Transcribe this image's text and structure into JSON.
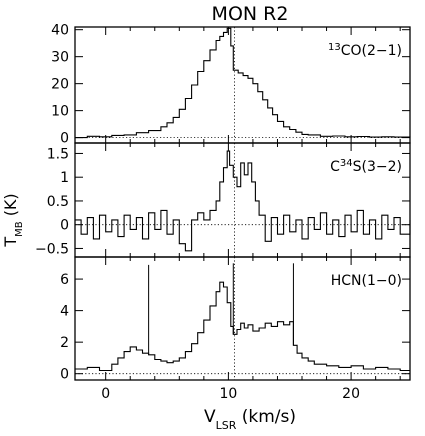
{
  "chart_data": {
    "type": "line",
    "title": "MON R2",
    "xlabel": {
      "main": "V",
      "sub": "LSR",
      "tail": " (km/s)"
    },
    "ylabel": {
      "main": "T",
      "sub": "MB",
      "tail": " (K)"
    },
    "xlim": [
      -2.5,
      24.8
    ],
    "x_ticks": [
      0,
      10,
      20
    ],
    "reference_velocity": 10.5,
    "panels": [
      {
        "name": "13CO(2-1)",
        "label": {
          "sup": "13",
          "main": "CO(2−1)",
          "sub": "",
          "tail": ""
        },
        "ylim": [
          -2,
          41
        ],
        "y_ticks": [
          0,
          10,
          20,
          30,
          40
        ],
        "x": [
          -2.5,
          -1.5,
          -0.5,
          0.5,
          1.5,
          2.5,
          3.5,
          4.5,
          5.0,
          5.5,
          6.0,
          6.5,
          7.0,
          7.5,
          8.0,
          8.5,
          9.0,
          9.3,
          9.6,
          9.9,
          10.2,
          10.4,
          10.8,
          11.2,
          11.6,
          12.0,
          12.4,
          12.8,
          13.2,
          13.6,
          14.0,
          14.5,
          15.0,
          15.5,
          16.0,
          16.5,
          17.5,
          18.5,
          19.5,
          20.5,
          21.5,
          22.5,
          23.5,
          24.8
        ],
        "y": [
          0,
          0.5,
          0.3,
          0.8,
          1.0,
          1.8,
          2.6,
          4.0,
          5.5,
          7.5,
          10.5,
          14.5,
          19.5,
          24.5,
          28.5,
          32.5,
          36,
          37.5,
          39,
          40.5,
          34,
          25,
          24,
          23,
          22,
          20,
          17,
          14,
          11,
          8.5,
          6,
          4,
          3,
          2,
          1.2,
          1,
          0.5,
          0.6,
          0.3,
          0.4,
          0.2,
          0.3,
          0.2,
          0.1
        ]
      },
      {
        "name": "C34S(3-2)",
        "label": {
          "sup": "",
          "main": "C",
          "sub": "",
          "sup2": "34",
          "tail": "S(3−2)"
        },
        "ylim": [
          -0.68,
          1.72
        ],
        "y_ticks": [
          -0.5,
          0,
          0.5,
          1,
          1.5
        ],
        "x": [
          -2.5,
          -2.0,
          -1.5,
          -1.0,
          -0.5,
          0.0,
          0.5,
          1.0,
          1.5,
          2.0,
          2.5,
          3.0,
          3.5,
          4.0,
          4.5,
          5.0,
          5.5,
          6.0,
          6.5,
          7.0,
          7.5,
          8.0,
          8.5,
          9.0,
          9.3,
          9.6,
          9.9,
          10.1,
          10.4,
          10.7,
          11.0,
          11.3,
          11.6,
          11.9,
          12.2,
          12.5,
          13.0,
          13.5,
          14.0,
          14.5,
          15.0,
          15.5,
          16.0,
          16.5,
          17.0,
          17.5,
          18.0,
          18.5,
          19.0,
          19.5,
          20.0,
          20.5,
          21.0,
          21.5,
          22.0,
          22.5,
          23.0,
          23.5,
          24.0,
          24.8
        ],
        "y": [
          0.1,
          -0.2,
          0.15,
          -0.3,
          0.2,
          -0.15,
          0.1,
          -0.25,
          0.2,
          -0.1,
          0.15,
          -0.3,
          0.25,
          -0.1,
          0.3,
          -0.2,
          0.1,
          -0.4,
          -0.55,
          0.1,
          0.25,
          0.1,
          0.3,
          0.5,
          0.9,
          1.2,
          1.55,
          1.25,
          1.0,
          0.8,
          1.3,
          1.05,
          1.3,
          0.9,
          0.5,
          0.2,
          -0.35,
          0.15,
          -0.2,
          0.2,
          -0.15,
          0.1,
          -0.3,
          0.15,
          -0.1,
          0.25,
          -0.2,
          0.1,
          -0.25,
          0.2,
          -0.15,
          0.3,
          -0.2,
          0.1,
          -0.3,
          0.2,
          -0.1,
          0.15,
          -0.2,
          0.1
        ]
      },
      {
        "name": "HCN(1-0)",
        "label": {
          "sup": "",
          "main": "HCN(1−0)",
          "sub": "",
          "tail": ""
        },
        "ylim": [
          -0.4,
          7.4
        ],
        "y_ticks": [
          0,
          2,
          4,
          6
        ],
        "x": [
          -2.5,
          -1.5,
          -0.5,
          0.5,
          1.0,
          1.5,
          2.0,
          2.5,
          3.0,
          3.5,
          4.0,
          4.5,
          5.0,
          5.5,
          6.0,
          6.5,
          7.0,
          7.5,
          8.0,
          8.5,
          9.0,
          9.3,
          9.6,
          9.9,
          10.2,
          10.4,
          10.7,
          11.0,
          11.3,
          11.6,
          12.0,
          12.5,
          13.0,
          13.5,
          14.0,
          14.5,
          15.0,
          15.3,
          15.6,
          16.0,
          16.5,
          17.0,
          18.0,
          19.0,
          20.0,
          21.0,
          22.0,
          23.0,
          24.0,
          24.8
        ],
        "y": [
          0.3,
          0.4,
          0.2,
          0.6,
          1.0,
          1.4,
          1.7,
          1.5,
          1.3,
          1.2,
          0.9,
          0.8,
          0.7,
          0.8,
          1.0,
          1.4,
          1.9,
          2.6,
          3.4,
          4.3,
          5.2,
          5.8,
          5.5,
          4.5,
          3.0,
          2.5,
          2.8,
          3.2,
          2.9,
          3.1,
          2.7,
          2.9,
          3.2,
          3.0,
          3.3,
          3.1,
          3.3,
          1.8,
          1.3,
          1.0,
          0.8,
          0.6,
          0.5,
          0.4,
          0.5,
          0.3,
          0.4,
          0.3,
          0.2,
          0.2
        ],
        "spikes": [
          {
            "x": 3.5,
            "top": 6.9
          },
          {
            "x": 10.4,
            "top": 7.0
          },
          {
            "x": 15.3,
            "top": 7.0
          }
        ]
      }
    ]
  }
}
